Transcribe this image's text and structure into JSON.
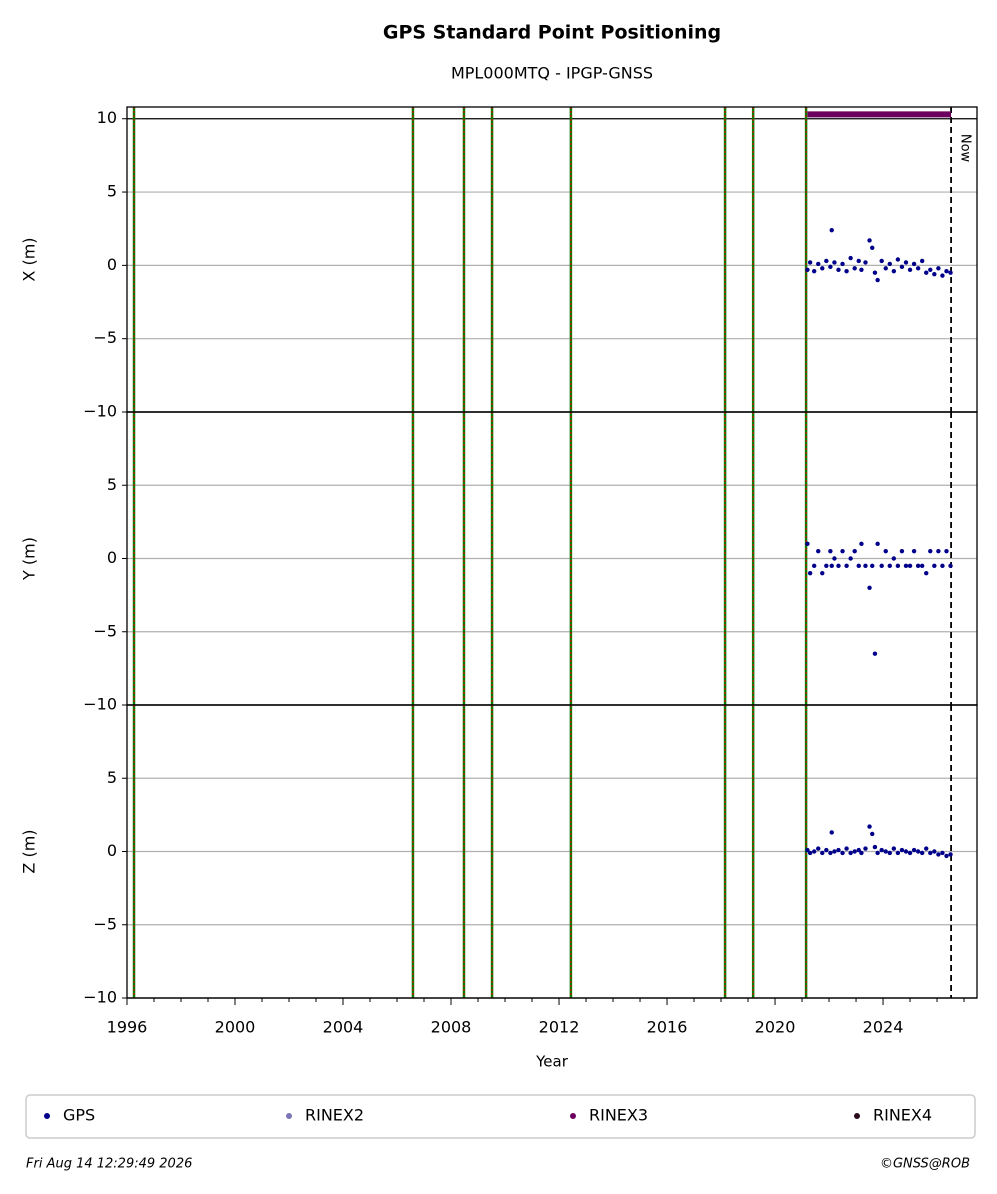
{
  "chart_data": {
    "type": "scatter",
    "title": "GPS Standard Point Positioning",
    "subtitle": "MPL000MTQ - IPGP-GNSS",
    "xlabel": "Year",
    "xlim": [
      1996,
      2027.48
    ],
    "xticks": [
      1996,
      2000,
      2004,
      2008,
      2012,
      2016,
      2020,
      2024
    ],
    "xminorticks": [
      1997,
      1998,
      1999,
      2001,
      2002,
      2003,
      2005,
      2006,
      2007,
      2009,
      2010,
      2011,
      2013,
      2014,
      2015,
      2017,
      2018,
      2019,
      2021,
      2022,
      2023,
      2025,
      2026,
      2027
    ],
    "grid": true,
    "events": [
      1996.26,
      2006.59,
      2008.48,
      2009.52,
      2012.44,
      2018.15,
      2019.19,
      2021.15
    ],
    "now": 2026.52,
    "now_label": "Now",
    "series": [
      {
        "name": "GPS",
        "color": "#00008b"
      },
      {
        "name": "RINEX2",
        "color": "#7b74b6"
      },
      {
        "name": "RINEX3",
        "color": "#6b005f",
        "x": [
          2021.2,
          2026.52
        ],
        "values": [
          10.3,
          10.3
        ]
      },
      {
        "name": "RINEX4",
        "color": "#2b0a1e"
      }
    ],
    "x": [
      2021.2,
      2021.3,
      2021.45,
      2021.6,
      2021.75,
      2021.9,
      2022.05,
      2022.1,
      2022.2,
      2022.35,
      2022.5,
      2022.65,
      2022.8,
      2022.95,
      2023.1,
      2023.2,
      2023.35,
      2023.5,
      2023.6,
      2023.7,
      2023.8,
      2023.95,
      2024.1,
      2024.25,
      2024.4,
      2024.55,
      2024.7,
      2024.85,
      2025.0,
      2025.15,
      2025.3,
      2025.45,
      2025.6,
      2025.75,
      2025.9,
      2026.05,
      2026.2,
      2026.35,
      2026.5
    ],
    "panels": [
      {
        "ylabel": "X (m)",
        "ylim": [
          -10,
          10.8
        ],
        "yticks": [
          10,
          5,
          0,
          {
            "value": -5,
            "label": "−5"
          },
          {
            "value": -10,
            "label": "−10"
          }
        ],
        "values": [
          -0.3,
          0.2,
          -0.4,
          0.1,
          -0.2,
          0.3,
          -0.1,
          2.4,
          0.2,
          -0.3,
          0.1,
          -0.4,
          0.5,
          -0.2,
          0.3,
          -0.3,
          0.2,
          1.7,
          1.2,
          -0.5,
          -1.0,
          0.3,
          -0.2,
          0.1,
          -0.4,
          0.4,
          -0.1,
          0.2,
          -0.3,
          0.1,
          -0.2,
          0.3,
          -0.5,
          -0.3,
          -0.6,
          -0.2,
          -0.7,
          -0.4,
          -0.5
        ]
      },
      {
        "ylabel": "Y (m)",
        "ylim": [
          -10,
          10
        ],
        "yticks": [
          5,
          0,
          {
            "value": -5,
            "label": "−5"
          },
          {
            "value": -10,
            "label": "−10"
          }
        ],
        "values": [
          1.0,
          -1.0,
          -0.5,
          0.5,
          -1.0,
          -0.5,
          0.5,
          -0.5,
          0,
          -0.5,
          0.5,
          -0.5,
          0,
          0.5,
          -0.5,
          1.0,
          -0.5,
          -2.0,
          -0.5,
          -6.5,
          1.0,
          -0.5,
          0.5,
          -0.5,
          0,
          -0.5,
          0.5,
          -0.5,
          -0.5,
          0.5,
          -0.5,
          -0.5,
          -1.0,
          0.5,
          -0.5,
          0.5,
          -0.5,
          0.5,
          -0.5
        ]
      },
      {
        "ylabel": "Z (m)",
        "ylim": [
          -10,
          10
        ],
        "yticks": [
          5,
          0,
          {
            "value": -5,
            "label": "−5"
          },
          {
            "value": -10,
            "label": "−10"
          }
        ],
        "values": [
          0.1,
          -0.1,
          0,
          0.2,
          -0.1,
          0.1,
          -0.1,
          1.3,
          0,
          0.1,
          -0.1,
          0.2,
          -0.1,
          0,
          0.1,
          -0.1,
          0.2,
          1.7,
          1.2,
          0.3,
          -0.1,
          0.1,
          0,
          -0.1,
          0.2,
          -0.1,
          0.1,
          0,
          -0.1,
          0.1,
          0,
          -0.1,
          0.2,
          -0.1,
          0,
          -0.2,
          -0.1,
          -0.3,
          -0.2
        ]
      }
    ],
    "timestamp": "Fri Aug 14 12:29:49 2026",
    "credit": "©GNSS@ROB"
  }
}
